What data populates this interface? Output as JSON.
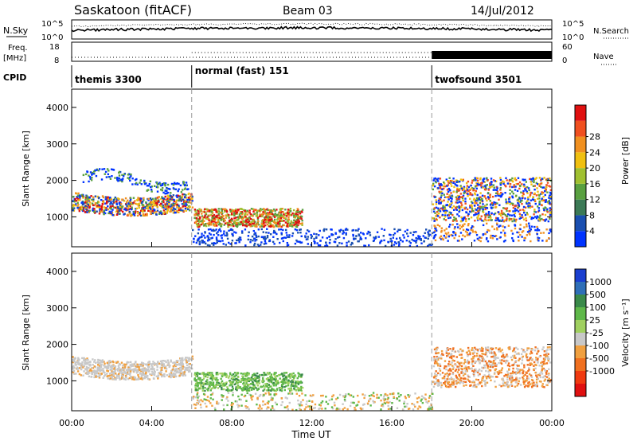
{
  "header": {
    "station": "Saskatoon (fitACF)",
    "beam": "Beam 03",
    "date": "14/Jul/2012"
  },
  "top_panels": {
    "nsky_label": "N.Sky",
    "nsearch_label": "N.Search",
    "freq_label_1": "Freq.",
    "freq_label_2": "[MHz]",
    "nave_label": "Nave",
    "cpid_label": "CPID",
    "noise_left_ticks": [
      "10^5",
      "10^0"
    ],
    "noise_right_ticks": [
      "10^5",
      "10^0"
    ],
    "freq_left_ticks": [
      "18",
      "8"
    ],
    "nave_right_ticks": [
      "60",
      "0"
    ]
  },
  "cpid_segments": [
    {
      "label": "themis 3300",
      "start_hour": 0,
      "end_hour": 6
    },
    {
      "label": "normal (fast) 151",
      "start_hour": 6,
      "end_hour": 18
    },
    {
      "label": "twofsound 3501",
      "start_hour": 18,
      "end_hour": 24
    }
  ],
  "chart_data": [
    {
      "type": "heatmap",
      "name": "power",
      "xlabel": "Time UT",
      "ylabel": "Slant Range [km]",
      "xlim": [
        0,
        24
      ],
      "ylim": [
        180,
        4500
      ],
      "yticks": [
        "1000",
        "2000",
        "3000",
        "4000"
      ],
      "colorbar_label": "Power [dB]",
      "colorbar_ticks": [
        "4",
        "8",
        "12",
        "16",
        "20",
        "24",
        "28"
      ],
      "colorbar_colors": [
        "#0033ff",
        "#1a4fb0",
        "#3c7a56",
        "#59a040",
        "#a0c030",
        "#f0c010",
        "#f09020",
        "#f05020",
        "#e01010"
      ]
    },
    {
      "type": "heatmap",
      "name": "velocity",
      "xlabel": "Time UT",
      "ylabel": "Slant Range [km]",
      "xlim": [
        0,
        24
      ],
      "ylim": [
        180,
        4500
      ],
      "yticks": [
        "1000",
        "2000",
        "3000",
        "4000"
      ],
      "colorbar_label": "Velocity [m s⁻¹]",
      "colorbar_ticks": [
        "1000",
        "500",
        "100",
        "25",
        "-25",
        "-100",
        "-500",
        "-1000"
      ],
      "colorbar_colors": [
        "#1a3fd0",
        "#2f6fb8",
        "#3a8a4a",
        "#5fb84a",
        "#a0d060",
        "#c8c8c8",
        "#f0a040",
        "#f07020",
        "#f03a10",
        "#e01010"
      ]
    }
  ],
  "xaxis": {
    "ticks": [
      "00:00",
      "04:00",
      "08:00",
      "12:00",
      "16:00",
      "20:00",
      "00:00"
    ],
    "tick_hours": [
      0,
      4,
      8,
      12,
      16,
      20,
      24
    ],
    "label": "Time UT"
  }
}
